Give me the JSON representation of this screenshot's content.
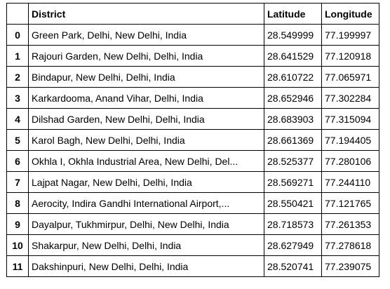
{
  "table": {
    "columns": [
      "",
      "District",
      "Latitude",
      "Longitude"
    ],
    "rows": [
      {
        "index": "0",
        "district": "Green Park, Delhi, New Delhi, India",
        "latitude": "28.549999",
        "longitude": "77.199997"
      },
      {
        "index": "1",
        "district": "Rajouri Garden, New Delhi, Delhi, India",
        "latitude": "28.641529",
        "longitude": "77.120918"
      },
      {
        "index": "2",
        "district": "Bindapur, New Delhi, Delhi, India",
        "latitude": "28.610722",
        "longitude": "77.065971"
      },
      {
        "index": "3",
        "district": "Karkardooma, Anand Vihar, Delhi, India",
        "latitude": "28.652946",
        "longitude": "77.302284"
      },
      {
        "index": "4",
        "district": "Dilshad Garden, New Delhi, Delhi, India",
        "latitude": "28.683903",
        "longitude": "77.315094"
      },
      {
        "index": "5",
        "district": "Karol Bagh, New Delhi, Delhi, India",
        "latitude": "28.661369",
        "longitude": "77.194405"
      },
      {
        "index": "6",
        "district": "Okhla I, Okhla Industrial Area, New Delhi, Del...",
        "latitude": "28.525377",
        "longitude": "77.280106"
      },
      {
        "index": "7",
        "district": "Lajpat Nagar, New Delhi, Delhi, India",
        "latitude": "28.569271",
        "longitude": "77.244110"
      },
      {
        "index": "8",
        "district": "Aerocity, Indira Gandhi International Airport,...",
        "latitude": "28.550421",
        "longitude": "77.121765"
      },
      {
        "index": "9",
        "district": "Dayalpur, Tukhmirpur, Delhi, New Delhi, India",
        "latitude": "28.718573",
        "longitude": "77.261353"
      },
      {
        "index": "10",
        "district": "Shakarpur, New Delhi, Delhi, India",
        "latitude": "28.627949",
        "longitude": "77.278618"
      },
      {
        "index": "11",
        "district": "Dakshinpuri, New Delhi, Delhi, India",
        "latitude": "28.520741",
        "longitude": "77.239075"
      }
    ]
  }
}
